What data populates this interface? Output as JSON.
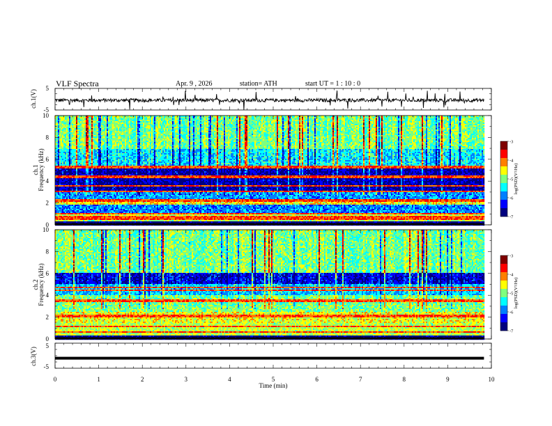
{
  "header": {
    "title": "VLF  Spectra",
    "date": "Apr. 9   , 2026",
    "station": "station= ATH",
    "start": "start  UT  =    1  : 10 : 0"
  },
  "colors": {
    "jet": [
      "#00007f",
      "#0000ff",
      "#007fff",
      "#00ffff",
      "#7fff7f",
      "#ffff00",
      "#ff7f00",
      "#ff0000",
      "#7f0000",
      "#ffffff"
    ]
  },
  "chart_data": [
    {
      "type": "line",
      "name": "ch1-waveform",
      "ylabel": "ch.1(V)",
      "ylim": [
        -5,
        5
      ],
      "yticks": [
        "5",
        "-5"
      ],
      "baseline": -0.5,
      "amplitude_note": "noise waveform approx -2 to 1 V with spikes"
    },
    {
      "type": "heatmap",
      "name": "ch1-spectrogram",
      "ylabel": "ch.1\nFrequency  (kHz)",
      "ylim": [
        0,
        10
      ],
      "yticks": [
        "10",
        "8",
        "6",
        "4",
        "2",
        "0"
      ],
      "xlim": [
        0,
        10
      ],
      "data_end_min": 9.83,
      "colorbar": {
        "label": "log(PSD)(V²/Hz)",
        "range": [
          -7,
          -3
        ],
        "ticks": [
          "-3",
          "-4",
          "-5",
          "-6",
          "-7"
        ]
      },
      "bands": [
        {
          "f0": 0.0,
          "f1": 0.3,
          "level": 0.05
        },
        {
          "f0": 0.3,
          "f1": 0.9,
          "level": 0.55
        },
        {
          "f0": 0.9,
          "f1": 1.8,
          "level": 0.28
        },
        {
          "f0": 1.8,
          "f1": 2.3,
          "level": 0.62
        },
        {
          "f0": 2.3,
          "f1": 3.0,
          "level": 0.3
        },
        {
          "f0": 3.0,
          "f1": 5.2,
          "level": 0.1
        },
        {
          "f0": 5.2,
          "f1": 7.0,
          "level": 0.38
        },
        {
          "f0": 7.0,
          "f1": 10.0,
          "level": 0.5
        }
      ],
      "lines_khz": [
        0.5,
        0.7,
        1.0,
        2.15,
        2.3,
        3.1,
        3.6,
        4.4,
        5.2,
        5.4
      ]
    },
    {
      "type": "heatmap",
      "name": "ch2-spectrogram",
      "ylabel": "ch.2\nFrequency  (kHz)",
      "ylim": [
        0,
        10
      ],
      "yticks": [
        "10",
        "8",
        "6",
        "4",
        "2",
        "0"
      ],
      "xlim": [
        0,
        10
      ],
      "data_end_min": 9.83,
      "colorbar": {
        "label": "log(PSD)(V²/Hz)",
        "range": [
          -7,
          -3
        ],
        "ticks": [
          "-3",
          "-4",
          "-5",
          "-6",
          "-7"
        ]
      },
      "bands": [
        {
          "f0": 0.0,
          "f1": 0.3,
          "level": 0.05
        },
        {
          "f0": 0.3,
          "f1": 1.5,
          "level": 0.55
        },
        {
          "f0": 1.5,
          "f1": 2.5,
          "level": 0.6
        },
        {
          "f0": 2.5,
          "f1": 4.0,
          "level": 0.5
        },
        {
          "f0": 4.0,
          "f1": 5.0,
          "level": 0.35
        },
        {
          "f0": 5.0,
          "f1": 6.0,
          "level": 0.15
        },
        {
          "f0": 6.0,
          "f1": 10.0,
          "level": 0.5
        }
      ],
      "lines_khz": [
        0.6,
        1.2,
        2.0,
        2.2,
        3.4,
        3.6,
        4.5,
        4.7
      ]
    },
    {
      "type": "line",
      "name": "ch3-waveform",
      "ylabel": "ch.3(V)",
      "ylim": [
        -5,
        5
      ],
      "yticks": [
        "5",
        "-5"
      ],
      "baseline": -1,
      "amplitude_note": "flat thick line near -1 V"
    }
  ],
  "xaxis": {
    "label": "Time  (min)",
    "ticks": [
      "0",
      "1",
      "2",
      "3",
      "4",
      "5",
      "6",
      "7",
      "8",
      "9",
      "10"
    ]
  }
}
